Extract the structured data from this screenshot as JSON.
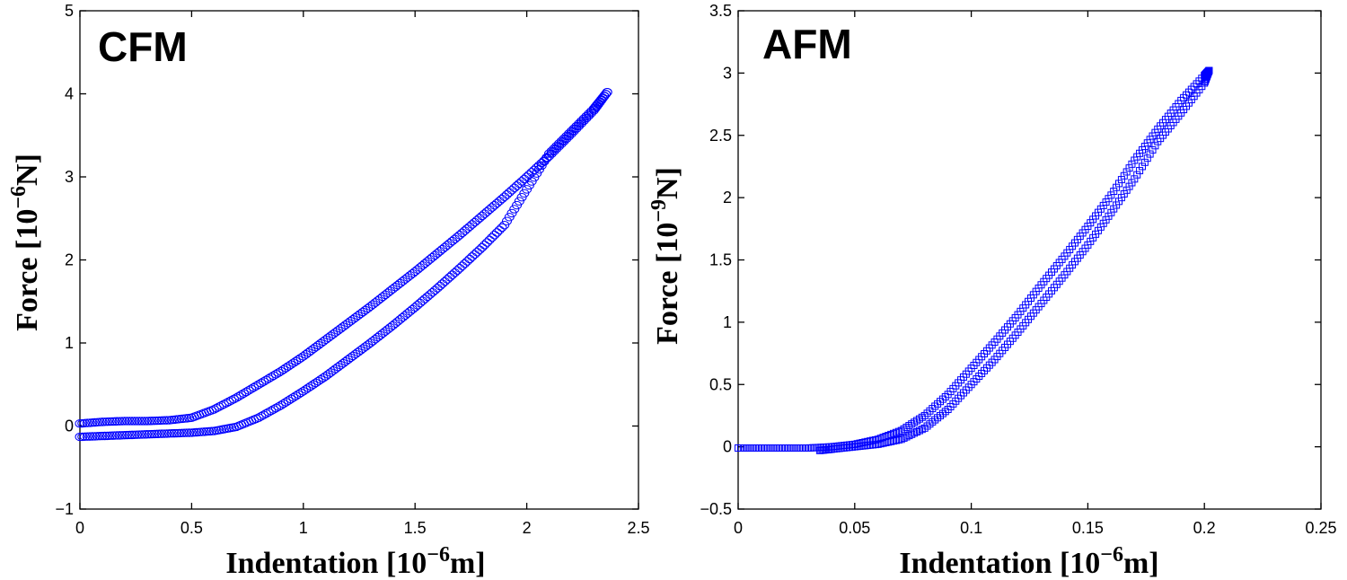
{
  "chart_data": [
    {
      "type": "scatter",
      "title": "CFM",
      "xlabel_main": "Indentation [10",
      "xlabel_exp": "−6",
      "xlabel_unit": "m]",
      "ylabel_main": "Force [10",
      "ylabel_exp": "−6",
      "ylabel_unit": "N]",
      "xlim": [
        0,
        2.5
      ],
      "ylim": [
        -1,
        5
      ],
      "xticks": [
        "0",
        "0.5",
        "1",
        "1.5",
        "2",
        "2.5"
      ],
      "xtick_values": [
        0,
        0.5,
        1,
        1.5,
        2,
        2.5
      ],
      "yticks": [
        "−1",
        "0",
        "1",
        "2",
        "3",
        "4",
        "5"
      ],
      "ytick_values": [
        -1,
        0,
        1,
        2,
        3,
        4,
        5
      ],
      "marker": "circle",
      "color": "#0000ff",
      "grid": false,
      "series": [
        {
          "curve": "loading",
          "x": [
            0,
            0.1,
            0.2,
            0.3,
            0.4,
            0.5,
            0.6,
            0.7,
            0.8,
            0.9,
            1.0,
            1.1,
            1.2,
            1.3,
            1.4,
            1.5,
            1.6,
            1.7,
            1.8,
            1.9,
            2.0,
            2.1,
            2.2,
            2.3,
            2.36
          ],
          "y": [
            0.03,
            0.05,
            0.06,
            0.06,
            0.07,
            0.1,
            0.2,
            0.34,
            0.5,
            0.66,
            0.84,
            1.04,
            1.24,
            1.44,
            1.65,
            1.86,
            2.08,
            2.3,
            2.53,
            2.76,
            3.0,
            3.25,
            3.52,
            3.8,
            4.02
          ]
        },
        {
          "curve": "unloading",
          "x": [
            0,
            0.1,
            0.2,
            0.3,
            0.4,
            0.5,
            0.6,
            0.7,
            0.8,
            0.9,
            1.0,
            1.1,
            1.2,
            1.3,
            1.4,
            1.5,
            1.6,
            1.7,
            1.8,
            1.9,
            2.0,
            2.1,
            2.2,
            2.3,
            2.36
          ],
          "y": [
            -0.13,
            -0.12,
            -0.11,
            -0.1,
            -0.09,
            -0.08,
            -0.06,
            -0.01,
            0.1,
            0.25,
            0.42,
            0.6,
            0.8,
            1.0,
            1.21,
            1.43,
            1.66,
            1.9,
            2.15,
            2.42,
            2.85,
            3.28,
            3.55,
            3.82,
            4.02
          ]
        }
      ]
    },
    {
      "type": "scatter",
      "title": "AFM",
      "xlabel_main": "Indentation [10",
      "xlabel_exp": "−6",
      "xlabel_unit": "m]",
      "ylabel_main": "Force [10",
      "ylabel_exp": "−9",
      "ylabel_unit": "N]",
      "xlim": [
        0,
        0.25
      ],
      "ylim": [
        -0.5,
        3.5
      ],
      "xticks": [
        "0",
        "0.05",
        "0.1",
        "0.15",
        "0.2",
        "0.25"
      ],
      "xtick_values": [
        0,
        0.05,
        0.1,
        0.15,
        0.2,
        0.25
      ],
      "yticks": [
        "−0.5",
        "0",
        "0.5",
        "1",
        "1.5",
        "2",
        "2.5",
        "3",
        "3.5"
      ],
      "ytick_values": [
        -0.5,
        0,
        0.5,
        1,
        1.5,
        2,
        2.5,
        3,
        3.5
      ],
      "marker": "square",
      "color": "#0000ff",
      "grid": false,
      "series": [
        {
          "curve": "loading",
          "x": [
            0,
            0.01,
            0.02,
            0.03,
            0.04,
            0.05,
            0.06,
            0.07,
            0.08,
            0.09,
            0.1,
            0.11,
            0.12,
            0.13,
            0.14,
            0.15,
            0.16,
            0.17,
            0.18,
            0.19,
            0.2,
            0.202
          ],
          "y": [
            -0.01,
            -0.01,
            -0.01,
            -0.01,
            0.0,
            0.02,
            0.06,
            0.13,
            0.25,
            0.42,
            0.63,
            0.84,
            1.06,
            1.3,
            1.53,
            1.77,
            2.02,
            2.3,
            2.55,
            2.78,
            2.98,
            3.02
          ]
        },
        {
          "curve": "unloading",
          "x": [
            0.035,
            0.04,
            0.05,
            0.06,
            0.07,
            0.08,
            0.09,
            0.1,
            0.11,
            0.12,
            0.13,
            0.14,
            0.15,
            0.16,
            0.17,
            0.18,
            0.19,
            0.2,
            0.202
          ],
          "y": [
            -0.03,
            -0.02,
            0.0,
            0.02,
            0.06,
            0.15,
            0.3,
            0.5,
            0.7,
            0.92,
            1.15,
            1.38,
            1.62,
            1.88,
            2.15,
            2.45,
            2.68,
            2.92,
            3.02
          ]
        }
      ]
    }
  ]
}
